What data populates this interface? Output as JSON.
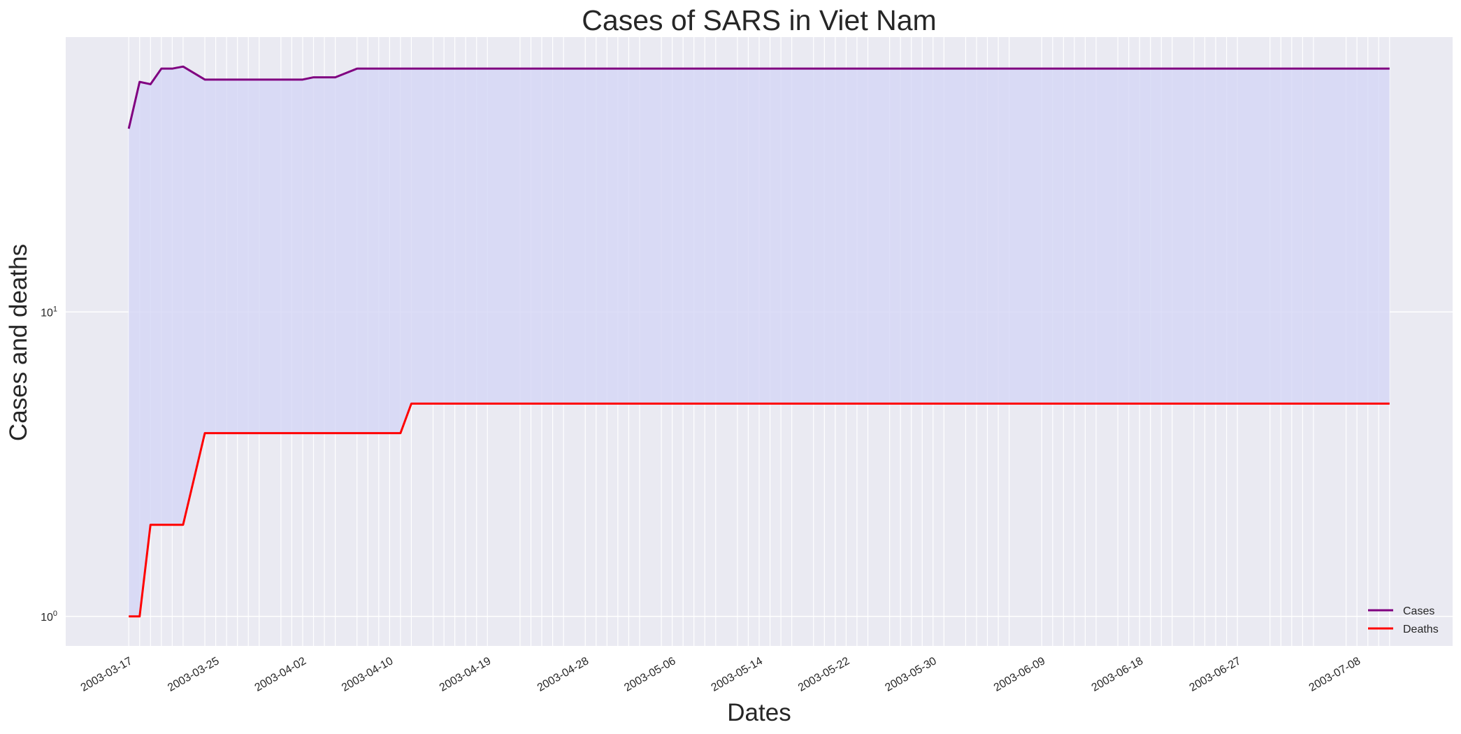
{
  "chart_data": {
    "type": "line",
    "title": "Cases of SARS in Viet Nam",
    "xlabel": "Dates",
    "ylabel": "Cases and deaths",
    "yscale": "log",
    "ylim": [
      0.8,
      80
    ],
    "grid": true,
    "legend_position": "bottom-right",
    "fill_between_series": true,
    "x_ticks": [
      "2003-03-17",
      "2003-03-25",
      "2003-04-02",
      "2003-04-10",
      "2003-04-19",
      "2003-04-28",
      "2003-05-06",
      "2003-05-14",
      "2003-05-22",
      "2003-05-30",
      "2003-06-09",
      "2003-06-18",
      "2003-06-27",
      "2003-07-08"
    ],
    "y_ticks": [
      {
        "value": 1,
        "base": "10",
        "exp": "0"
      },
      {
        "value": 10,
        "base": "10",
        "exp": "1"
      }
    ],
    "x": [
      "2003-03-17",
      "2003-03-18",
      "2003-03-19",
      "2003-03-20",
      "2003-03-21",
      "2003-03-22",
      "2003-03-24",
      "2003-03-25",
      "2003-03-26",
      "2003-03-27",
      "2003-03-28",
      "2003-03-29",
      "2003-03-31",
      "2003-04-01",
      "2003-04-02",
      "2003-04-03",
      "2003-04-04",
      "2003-04-05",
      "2003-04-07",
      "2003-04-08",
      "2003-04-09",
      "2003-04-10",
      "2003-04-11",
      "2003-04-12",
      "2003-04-14",
      "2003-04-15",
      "2003-04-16",
      "2003-04-17",
      "2003-04-18",
      "2003-04-19",
      "2003-04-22",
      "2003-04-23",
      "2003-04-24",
      "2003-04-25",
      "2003-04-26",
      "2003-04-28",
      "2003-04-29",
      "2003-04-30",
      "2003-05-01",
      "2003-05-02",
      "2003-05-03",
      "2003-05-05",
      "2003-05-06",
      "2003-05-07",
      "2003-05-08",
      "2003-05-09",
      "2003-05-10",
      "2003-05-12",
      "2003-05-13",
      "2003-05-14",
      "2003-05-15",
      "2003-05-16",
      "2003-05-17",
      "2003-05-19",
      "2003-05-20",
      "2003-05-21",
      "2003-05-22",
      "2003-05-23",
      "2003-05-24",
      "2003-05-26",
      "2003-05-27",
      "2003-05-28",
      "2003-05-29",
      "2003-05-30",
      "2003-05-31",
      "2003-06-02",
      "2003-06-03",
      "2003-06-04",
      "2003-06-05",
      "2003-06-06",
      "2003-06-09",
      "2003-06-10",
      "2003-06-11",
      "2003-06-12",
      "2003-06-13",
      "2003-06-14",
      "2003-06-16",
      "2003-06-17",
      "2003-06-18",
      "2003-06-19",
      "2003-06-20",
      "2003-06-21",
      "2003-06-23",
      "2003-06-24",
      "2003-06-25",
      "2003-06-26",
      "2003-06-27",
      "2003-06-30",
      "2003-07-01",
      "2003-07-02",
      "2003-07-03",
      "2003-07-04",
      "2003-07-07",
      "2003-07-08",
      "2003-07-09",
      "2003-07-10",
      "2003-07-11"
    ],
    "series": [
      {
        "name": "Cases",
        "color": "#800080",
        "values": [
          40,
          57,
          56,
          63,
          63,
          64,
          58,
          58,
          58,
          58,
          58,
          58,
          58,
          58,
          58,
          59,
          59,
          59,
          63,
          63,
          63,
          63,
          63,
          63,
          63,
          63,
          63,
          63,
          63,
          63,
          63,
          63,
          63,
          63,
          63,
          63,
          63,
          63,
          63,
          63,
          63,
          63,
          63,
          63,
          63,
          63,
          63,
          63,
          63,
          63,
          63,
          63,
          63,
          63,
          63,
          63,
          63,
          63,
          63,
          63,
          63,
          63,
          63,
          63,
          63,
          63,
          63,
          63,
          63,
          63,
          63,
          63,
          63,
          63,
          63,
          63,
          63,
          63,
          63,
          63,
          63,
          63,
          63,
          63,
          63,
          63,
          63,
          63,
          63,
          63,
          63,
          63,
          63,
          63,
          63,
          63,
          63
        ]
      },
      {
        "name": "Deaths",
        "color": "#ff0000",
        "values": [
          1,
          1,
          2,
          2,
          2,
          2,
          4,
          4,
          4,
          4,
          4,
          4,
          4,
          4,
          4,
          4,
          4,
          4,
          4,
          4,
          4,
          4,
          4,
          5,
          5,
          5,
          5,
          5,
          5,
          5,
          5,
          5,
          5,
          5,
          5,
          5,
          5,
          5,
          5,
          5,
          5,
          5,
          5,
          5,
          5,
          5,
          5,
          5,
          5,
          5,
          5,
          5,
          5,
          5,
          5,
          5,
          5,
          5,
          5,
          5,
          5,
          5,
          5,
          5,
          5,
          5,
          5,
          5,
          5,
          5,
          5,
          5,
          5,
          5,
          5,
          5,
          5,
          5,
          5,
          5,
          5,
          5,
          5,
          5,
          5,
          5,
          5,
          5,
          5,
          5,
          5,
          5,
          5,
          5,
          5,
          5,
          5
        ]
      }
    ],
    "fill_color": "#d5d6f5",
    "background_color": "#eaeaf2"
  }
}
